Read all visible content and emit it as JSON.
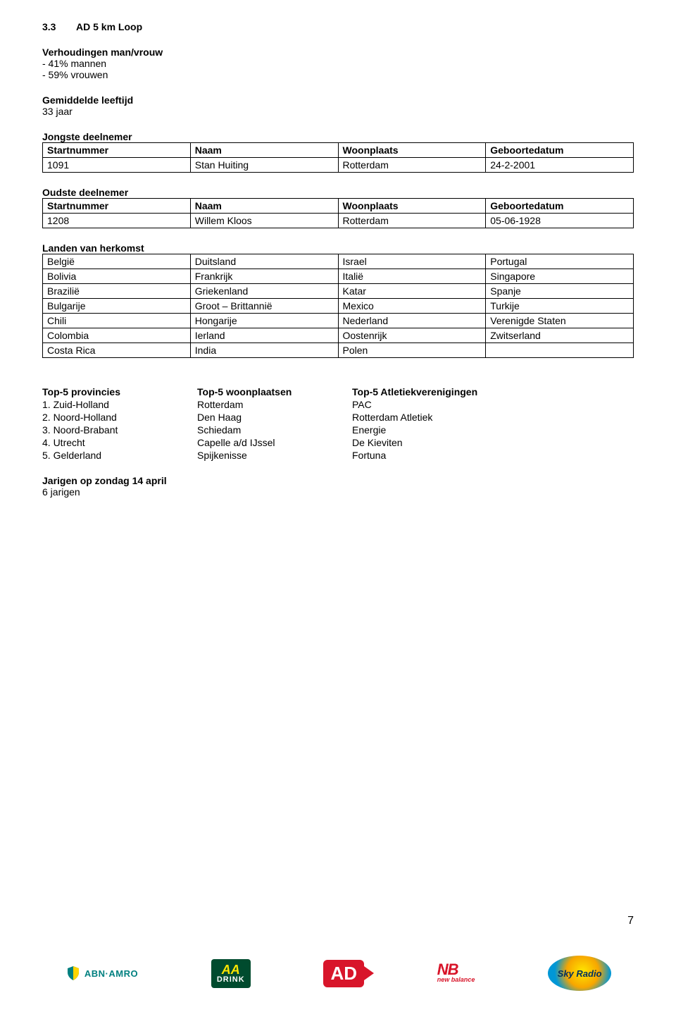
{
  "section": {
    "number": "3.3",
    "title": "AD 5 km Loop"
  },
  "ratio": {
    "heading": "Verhoudingen man/vrouw",
    "men": "- 41% mannen",
    "women": "- 59% vrouwen"
  },
  "avg_age": {
    "heading": "Gemiddelde leeftijd",
    "value": "33 jaar"
  },
  "youngest": {
    "heading": "Jongste deelnemer",
    "columns": [
      "Startnummer",
      "Naam",
      "Woonplaats",
      "Geboortedatum"
    ],
    "row": [
      "1091",
      "Stan Huiting",
      "Rotterdam",
      "24-2-2001"
    ]
  },
  "oldest": {
    "heading": "Oudste deelnemer",
    "columns": [
      "Startnummer",
      "Naam",
      "Woonplaats",
      "Geboortedatum"
    ],
    "row": [
      "1208",
      "Willem Kloos",
      "Rotterdam",
      "05-06-1928"
    ]
  },
  "countries": {
    "heading": "Landen van herkomst",
    "rows": [
      [
        "België",
        "Duitsland",
        "Israel",
        "Portugal"
      ],
      [
        "Bolivia",
        "Frankrijk",
        "Italië",
        "Singapore"
      ],
      [
        "Brazilië",
        "Griekenland",
        "Katar",
        "Spanje"
      ],
      [
        "Bulgarije",
        "Groot – Brittannië",
        "Mexico",
        "Turkije"
      ],
      [
        "Chili",
        "Hongarije",
        "Nederland",
        "Verenigde Staten"
      ],
      [
        "Colombia",
        "Ierland",
        "Oostenrijk",
        "Zwitserland"
      ],
      [
        "Costa Rica",
        "India",
        "Polen",
        ""
      ]
    ]
  },
  "top5": {
    "headers": [
      "Top-5 provincies",
      "Top-5 woonplaatsen",
      "Top-5 Atletiekverenigingen"
    ],
    "rows": [
      [
        "1. Zuid-Holland",
        "Rotterdam",
        "PAC"
      ],
      [
        "2. Noord-Holland",
        "Den Haag",
        "Rotterdam Atletiek"
      ],
      [
        "3. Noord-Brabant",
        "Schiedam",
        "Energie"
      ],
      [
        "4. Utrecht",
        "Capelle a/d IJssel",
        "De Kieviten"
      ],
      [
        "5. Gelderland",
        "Spijkenisse",
        "Fortuna"
      ]
    ]
  },
  "birthdays": {
    "heading": "Jarigen op zondag 14 april",
    "value": "6 jarigen"
  },
  "page_number": "7",
  "logos": {
    "abn": "ABN·AMRO",
    "aa_top": "AA",
    "aa_bottom": "DRINK",
    "ad": "AD",
    "nb_mark": "NB",
    "nb_text": "new balance",
    "sky": "Sky Radio"
  }
}
